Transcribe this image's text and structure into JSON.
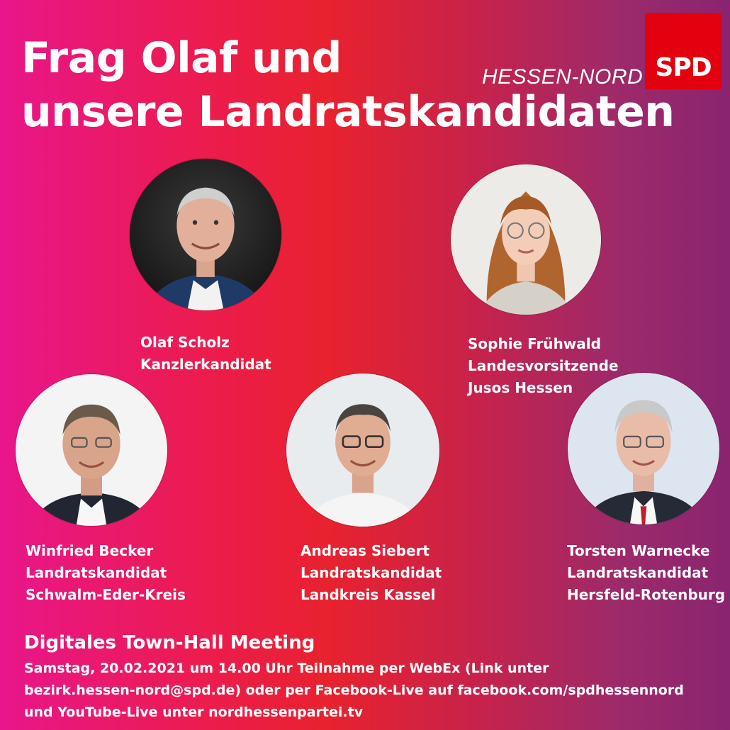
{
  "headline": {
    "line1": "Frag Olaf und",
    "line2": "unsere Landratskandidaten"
  },
  "branding": {
    "region": "HESSEN-NORD",
    "logo_text": "SPD",
    "logo_color": "#e3000f"
  },
  "people": [
    {
      "name": "Olaf Scholz",
      "role": "Kanzlerkandidat"
    },
    {
      "name": "Sophie Frühwald",
      "role": "Landesvorsitzende",
      "detail": "Jusos Hessen"
    },
    {
      "name": "Winfried Becker",
      "role": "Landratskandidat",
      "detail": "Schwalm-Eder-Kreis"
    },
    {
      "name": "Andreas Siebert",
      "role": "Landratskandidat",
      "detail": "Landkreis Kassel"
    },
    {
      "name": "Torsten Warnecke",
      "role": "Landratskandidat",
      "detail": "Hersfeld-Rotenburg"
    }
  ],
  "event": {
    "title": "Digitales Town-Hall Meeting",
    "line1": "Samstag, 20.02.2021 um 14.00 Uhr Teilnahme per WebEx (Link unter",
    "line2": "bezirk.hessen-nord@spd.de) oder per Facebook-Live auf facebook.com/spdhessennord",
    "line3": "und YouTube-Live unter nordhessenpartei.tv"
  },
  "colors": {
    "gradient_left": "#e8168a",
    "gradient_mid": "#e8222e",
    "gradient_right": "#8a2470",
    "text": "#ffffff"
  }
}
